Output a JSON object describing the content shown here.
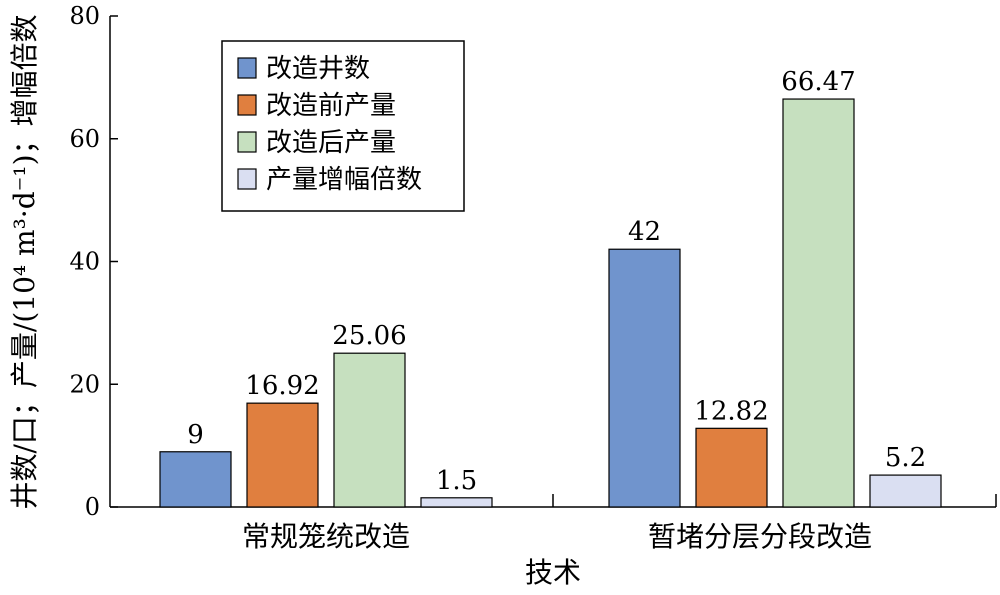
{
  "chart_data": {
    "type": "bar",
    "categories": [
      "常规笼统改造",
      "暂堵分层分段改造"
    ],
    "series": [
      {
        "name": "改造井数",
        "values": [
          9,
          42
        ],
        "labels": [
          "9",
          "42"
        ],
        "color": "#7094cd"
      },
      {
        "name": "改造前产量",
        "values": [
          16.92,
          12.82
        ],
        "labels": [
          "16.92",
          "12.82"
        ],
        "color": "#e07f3f"
      },
      {
        "name": "改造后产量",
        "values": [
          25.06,
          66.47
        ],
        "labels": [
          "25.06",
          "66.47"
        ],
        "color": "#c6e0bf"
      },
      {
        "name": "产量增幅倍数",
        "values": [
          1.5,
          5.2
        ],
        "labels": [
          "1.5",
          "5.2"
        ],
        "color": "#dadff2"
      }
    ],
    "xlabel": "技术",
    "ylabel": "井数/口；产量/(10⁴ m³·d⁻¹)；增幅倍数",
    "ylim": [
      0,
      80
    ],
    "yticks": [
      0,
      20,
      40,
      60,
      80
    ],
    "ytick_labels": [
      "0",
      "20",
      "40",
      "60",
      "80"
    ],
    "legend_position": "top-left",
    "grid": false
  }
}
